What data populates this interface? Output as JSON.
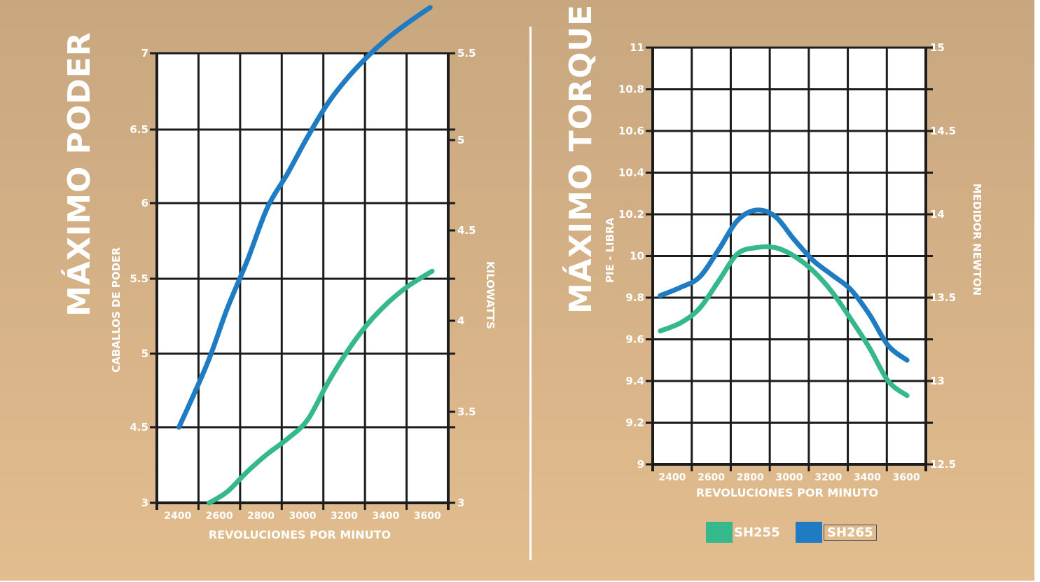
{
  "colors": {
    "sh255": "#35b98c",
    "sh265": "#1f7cc2",
    "grid": "#1c1c1c",
    "text": "#ffffff"
  },
  "left_chart": {
    "title": "MÁXIMO PODER",
    "ylabel": "CABALLOS DE PODER",
    "y2label": "KILOWATTS",
    "xlabel": "REVOLUCIONES POR MINUTO"
  },
  "right_chart": {
    "title": "MÁXIMO TORQUE",
    "ylabel": "PIE - LIBRA",
    "y2label": "MEDIDOR NEWTON",
    "xlabel": "REVOLUCIONES POR MINUTO"
  },
  "legend": {
    "items": [
      {
        "label": "SH255",
        "color": "#35b98c"
      },
      {
        "label": "SH265",
        "color": "#1f7cc2"
      }
    ]
  },
  "chart_data": [
    {
      "type": "line",
      "title": "MÁXIMO PODER",
      "xlabel": "REVOLUCIONES POR MINUTO",
      "ylabel": "CABALLOS DE PODER",
      "y2label": "KILOWATTS",
      "x_ticks": [
        "2400",
        "2600",
        "2800",
        "3000",
        "3200",
        "3400",
        "3600"
      ],
      "y_ticks": [
        "3",
        "4.5",
        "5",
        "5.5",
        "6",
        "6.5",
        "7"
      ],
      "y_tick_values": [
        3,
        4.5,
        5,
        5.5,
        6,
        6.5,
        7
      ],
      "y2_ticks": [
        "3",
        "3.5",
        "4",
        "4.5",
        "5",
        "5.5"
      ],
      "y2_tick_values": [
        3,
        3.5,
        4,
        4.5,
        5,
        5.5
      ],
      "y2_range": [
        3,
        5.5
      ],
      "grid": true,
      "series": [
        {
          "name": "SH255",
          "color": "#35b98c",
          "x": [
            2510,
            2600,
            2700,
            2800,
            2900,
            3000,
            3100,
            3200,
            3300,
            3400,
            3500,
            3620
          ],
          "y": [
            3.0,
            3.22,
            3.62,
            3.97,
            4.27,
            4.55,
            4.8,
            5.02,
            5.2,
            5.34,
            5.45,
            5.55
          ]
        },
        {
          "name": "SH265",
          "color": "#1f7cc2",
          "x": [
            2360,
            2500,
            2600,
            2700,
            2800,
            2900,
            3000,
            3100,
            3200,
            3300,
            3400,
            3500,
            3610
          ],
          "y": [
            4.5,
            4.93,
            5.3,
            5.62,
            5.97,
            6.2,
            6.45,
            6.67,
            6.84,
            6.98,
            7.1,
            7.2,
            7.3
          ]
        }
      ]
    },
    {
      "type": "line",
      "title": "MÁXIMO TORQUE",
      "xlabel": "REVOLUCIONES POR MINUTO",
      "ylabel": "PIE - LIBRA",
      "y2label": "MEDIDOR NEWTON",
      "x_ticks": [
        "2400",
        "2600",
        "2800",
        "3000",
        "3200",
        "3400",
        "3600"
      ],
      "y_ticks": [
        "9",
        "9.2",
        "9.4",
        "9.6",
        "9.8",
        "10",
        "10.2",
        "10.4",
        "10.6",
        "10.8",
        "11"
      ],
      "y_tick_values": [
        9,
        9.2,
        9.4,
        9.6,
        9.8,
        10,
        10.2,
        10.4,
        10.6,
        10.8,
        11
      ],
      "y2_ticks": [
        "12.5",
        "13",
        "13.5",
        "14",
        "14.5",
        "15"
      ],
      "y2_tick_values": [
        12.5,
        13,
        13.5,
        14,
        14.5,
        15
      ],
      "y2_range": [
        12.5,
        15
      ],
      "grid": true,
      "series": [
        {
          "name": "SH255",
          "color": "#35b98c",
          "x": [
            2340,
            2450,
            2550,
            2650,
            2750,
            2850,
            2950,
            3050,
            3150,
            3250,
            3350,
            3450,
            3550,
            3650
          ],
          "y": [
            9.64,
            9.68,
            9.75,
            9.88,
            10.01,
            10.04,
            10.04,
            10.0,
            9.93,
            9.83,
            9.7,
            9.56,
            9.4,
            9.33
          ]
        },
        {
          "name": "SH265",
          "color": "#1f7cc2",
          "x": [
            2340,
            2450,
            2550,
            2650,
            2750,
            2850,
            2950,
            3050,
            3150,
            3250,
            3350,
            3450,
            3550,
            3650
          ],
          "y": [
            9.81,
            9.85,
            9.9,
            10.03,
            10.17,
            10.22,
            10.19,
            10.08,
            9.98,
            9.91,
            9.84,
            9.72,
            9.57,
            9.5
          ]
        }
      ]
    }
  ]
}
